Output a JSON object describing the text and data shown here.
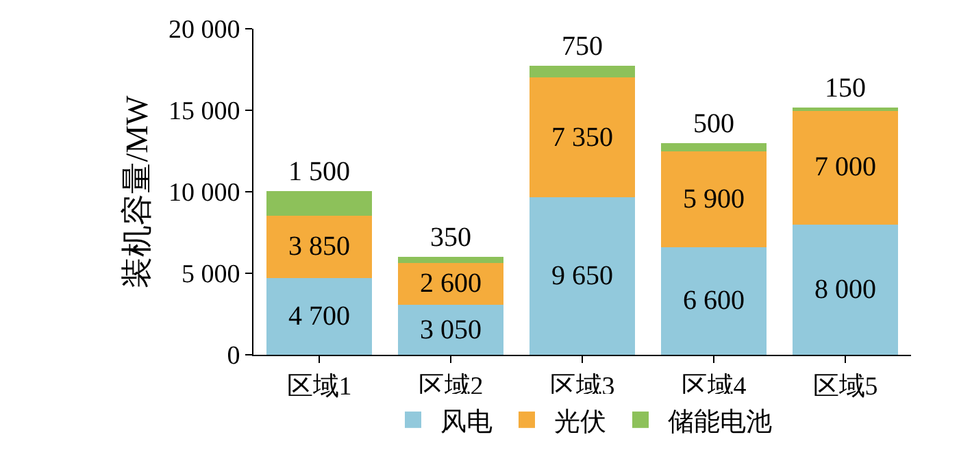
{
  "chart_data": {
    "type": "bar",
    "stacked": true,
    "ylabel": "装机容量/MW",
    "categories": [
      "区域1",
      "区域2",
      "区域3",
      "区域4",
      "区域5"
    ],
    "series": [
      {
        "name": "风电",
        "color": "#92c9dc",
        "values": [
          4700,
          3050,
          9650,
          6600,
          8000
        ],
        "value_labels": [
          "4 700",
          "3 050",
          "9 650",
          "6 600",
          "8 000"
        ]
      },
      {
        "name": "光伏",
        "color": "#f5ac3c",
        "values": [
          3850,
          2600,
          7350,
          5900,
          7000
        ],
        "value_labels": [
          "3 850",
          "2 600",
          "7 350",
          "5 900",
          "7 000"
        ]
      },
      {
        "name": "储能电池",
        "color": "#8dc15a",
        "values": [
          1500,
          350,
          750,
          500,
          150
        ],
        "value_labels": [
          "1 500",
          "350",
          "750",
          "500",
          "150"
        ]
      }
    ],
    "ylim": [
      0,
      20000
    ],
    "yticks": [
      0,
      {
        "value": 5000,
        "label": "5 000"
      },
      {
        "value": 10000,
        "label": "10 000"
      },
      {
        "value": 15000,
        "label": "15 000"
      },
      {
        "value": 20000,
        "label": "20 000"
      }
    ],
    "legend": "bottom"
  }
}
